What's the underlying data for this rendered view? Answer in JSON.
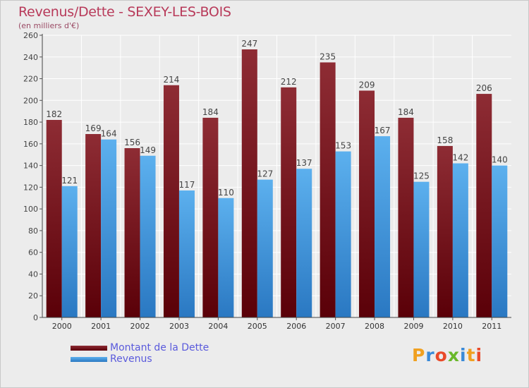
{
  "title": "Revenus/Dette - SEXEY-LES-BOIS",
  "subtitle": "(en milliers d'€)",
  "logo": {
    "letters": [
      "P",
      "r",
      "o",
      "x",
      "i",
      "t",
      "i"
    ],
    "colors": [
      "#f0a020",
      "#3a8ad8",
      "#e94a2a",
      "#6ab82a",
      "#3a8ad8",
      "#f0a020",
      "#e94a2a"
    ]
  },
  "chart_data": {
    "type": "bar",
    "categories": [
      "2000",
      "2001",
      "2002",
      "2003",
      "2004",
      "2005",
      "2006",
      "2007",
      "2008",
      "2009",
      "2010",
      "2011"
    ],
    "series": [
      {
        "name": "Montant de la Dette",
        "color": "#7a1a22",
        "values": [
          182,
          169,
          156,
          214,
          184,
          247,
          212,
          235,
          209,
          184,
          158,
          206
        ]
      },
      {
        "name": "Revenus",
        "color": "#4aa2e6",
        "values": [
          121,
          164,
          149,
          117,
          110,
          127,
          137,
          153,
          167,
          125,
          142,
          140
        ]
      }
    ],
    "ylim": [
      0,
      260
    ],
    "ytick_step": 20,
    "grid": true
  }
}
